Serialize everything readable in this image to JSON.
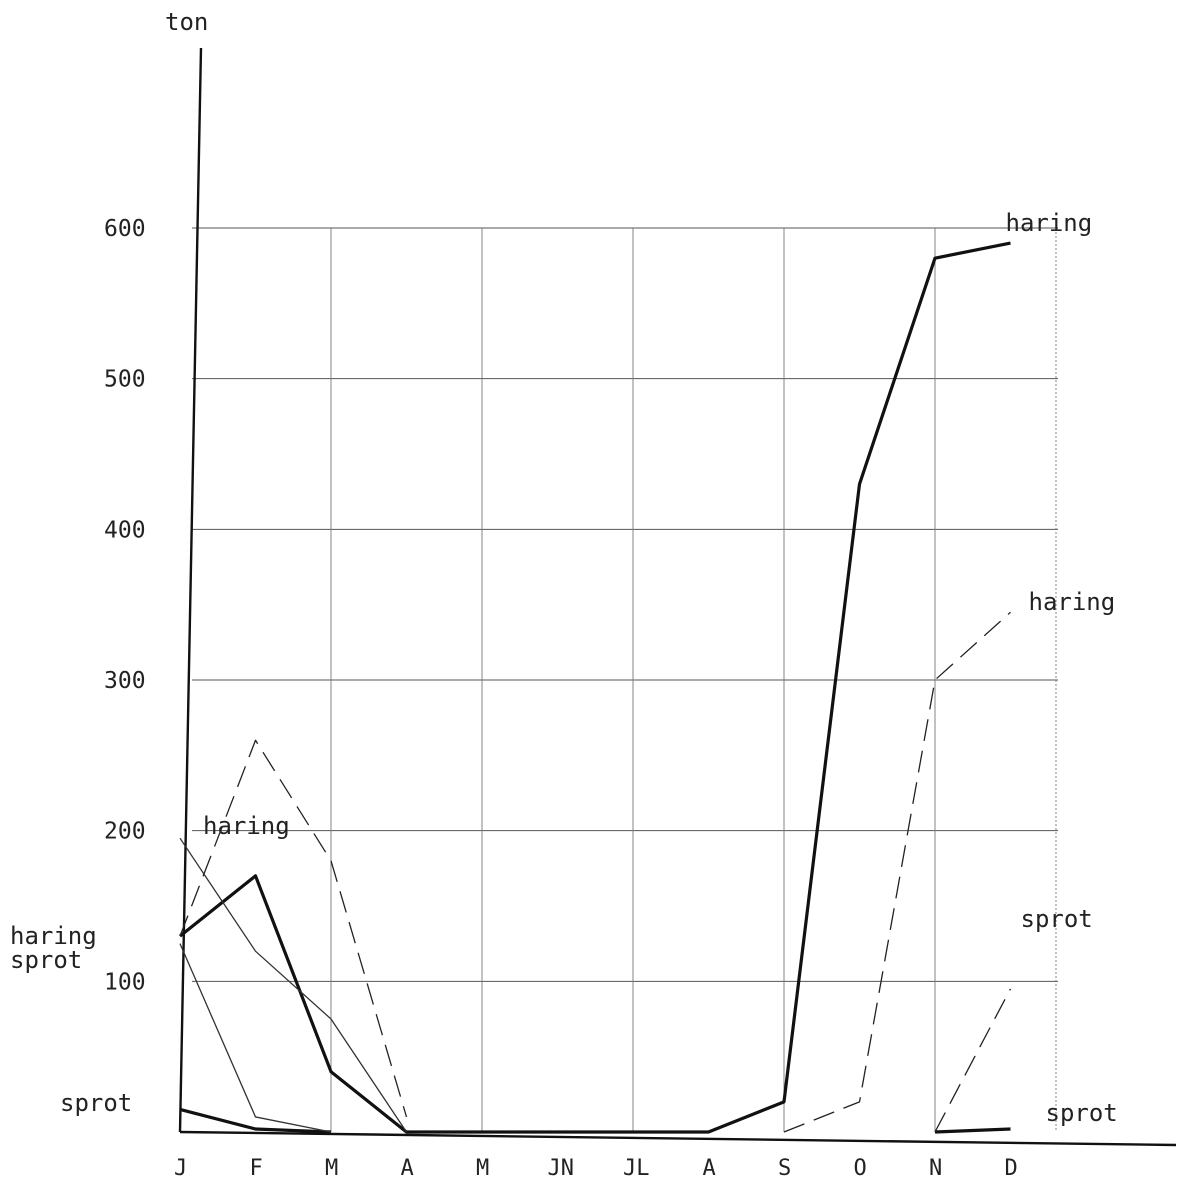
{
  "chart_data": {
    "type": "line",
    "ylabel": "ton",
    "xlabel": "",
    "categories": [
      "J",
      "F",
      "M",
      "A",
      "M",
      "JN",
      "JL",
      "A",
      "S",
      "O",
      "N",
      "D"
    ],
    "ylim": [
      0,
      600
    ],
    "yticks": [
      100,
      200,
      300,
      400,
      500,
      600
    ],
    "grid": true,
    "axis_start_labels": {
      "upper": "haring",
      "lower": "sprot"
    },
    "series": [
      {
        "name": "haring",
        "style": "solid-bold",
        "values": [
          130,
          170,
          40,
          0,
          0,
          0,
          0,
          0,
          20,
          430,
          580,
          590
        ]
      },
      {
        "name": "sprot",
        "style": "solid-bold",
        "values": [
          15,
          2,
          0,
          null,
          null,
          null,
          null,
          null,
          null,
          null,
          0,
          2
        ]
      },
      {
        "values": [
          195,
          120,
          75,
          0,
          null,
          null,
          null,
          null,
          null,
          null,
          null,
          null
        ]
      },
      {
        "values": [
          125,
          10,
          0,
          null,
          null,
          null,
          null,
          null,
          null,
          null,
          null,
          null
        ]
      },
      {
        "name": "haring",
        "style": "dashed",
        "values": [
          130,
          260,
          180,
          10,
          null,
          null,
          null,
          null,
          0,
          20,
          300,
          345
        ]
      },
      {
        "name": "sprot",
        "style": "dashed",
        "values": [
          null,
          null,
          null,
          null,
          null,
          null,
          null,
          null,
          null,
          null,
          0,
          95
        ]
      }
    ]
  }
}
